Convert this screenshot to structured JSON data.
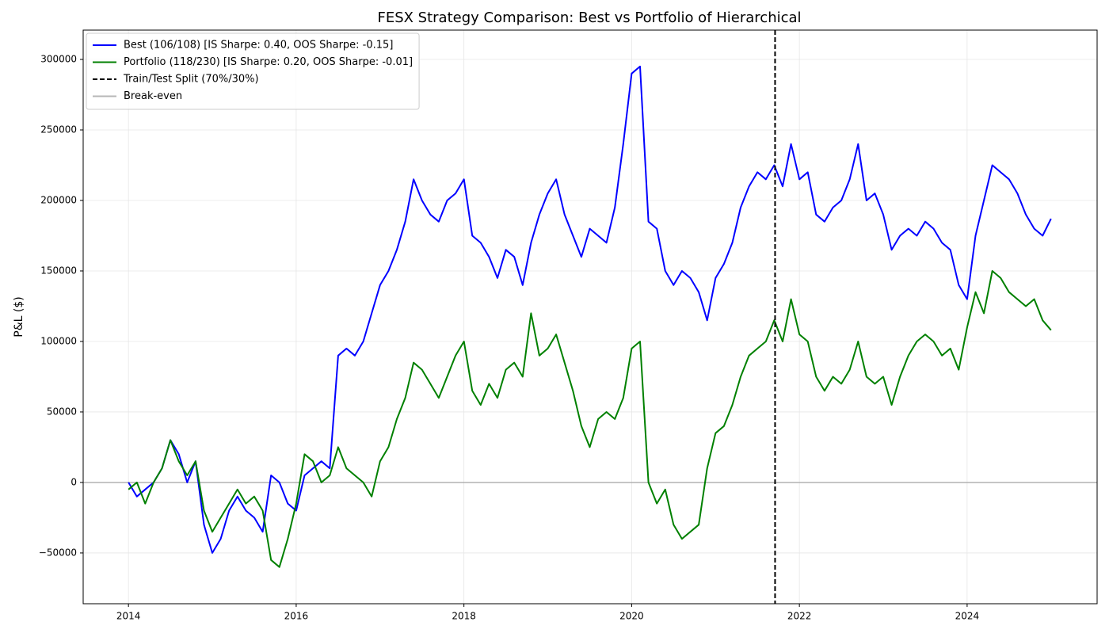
{
  "chart_data": {
    "type": "line",
    "title": "FESX Strategy Comparison: Best vs Portfolio of Hierarchical",
    "y_label": "P&L ($)",
    "x": [
      2014.0,
      2014.1,
      2014.2,
      2014.3,
      2014.4,
      2014.5,
      2014.6,
      2014.7,
      2014.8,
      2014.9,
      2015.0,
      2015.1,
      2015.2,
      2015.3,
      2015.4,
      2015.5,
      2015.6,
      2015.7,
      2015.8,
      2015.9,
      2016.0,
      2016.1,
      2016.2,
      2016.3,
      2016.4,
      2016.5,
      2016.6,
      2016.7,
      2016.8,
      2016.9,
      2017.0,
      2017.1,
      2017.2,
      2017.3,
      2017.4,
      2017.5,
      2017.6,
      2017.7,
      2017.8,
      2017.9,
      2018.0,
      2018.1,
      2018.2,
      2018.3,
      2018.4,
      2018.5,
      2018.6,
      2018.7,
      2018.8,
      2018.9,
      2019.0,
      2019.1,
      2019.2,
      2019.3,
      2019.4,
      2019.5,
      2019.6,
      2019.7,
      2019.8,
      2019.9,
      2020.0,
      2020.1,
      2020.2,
      2020.3,
      2020.4,
      2020.5,
      2020.6,
      2020.7,
      2020.8,
      2020.9,
      2021.0,
      2021.1,
      2021.2,
      2021.3,
      2021.4,
      2021.5,
      2021.6,
      2021.7,
      2021.8,
      2021.9,
      2022.0,
      2022.1,
      2022.2,
      2022.3,
      2022.4,
      2022.5,
      2022.6,
      2022.7,
      2022.8,
      2022.9,
      2023.0,
      2023.1,
      2023.2,
      2023.3,
      2023.4,
      2023.5,
      2023.6,
      2023.7,
      2023.8,
      2023.9,
      2024.0,
      2024.1,
      2024.2,
      2024.3,
      2024.4,
      2024.5,
      2024.6,
      2024.7,
      2024.8,
      2024.9,
      2025.0
    ],
    "series": [
      {
        "name": "Best (106/108) [IS Sharpe: 0.40, OOS Sharpe: -0.15]",
        "color": "#0000ff",
        "values": [
          0,
          -10000,
          -5000,
          0,
          10000,
          30000,
          20000,
          0,
          15000,
          -30000,
          -50000,
          -40000,
          -20000,
          -10000,
          -20000,
          -25000,
          -35000,
          5000,
          0,
          -15000,
          -20000,
          5000,
          10000,
          15000,
          10000,
          90000,
          95000,
          90000,
          100000,
          120000,
          140000,
          150000,
          165000,
          185000,
          215000,
          200000,
          190000,
          185000,
          200000,
          205000,
          215000,
          175000,
          170000,
          160000,
          145000,
          165000,
          160000,
          140000,
          170000,
          190000,
          205000,
          215000,
          190000,
          175000,
          160000,
          180000,
          175000,
          170000,
          195000,
          240000,
          290000,
          295000,
          185000,
          180000,
          150000,
          140000,
          150000,
          145000,
          135000,
          115000,
          145000,
          155000,
          170000,
          195000,
          210000,
          220000,
          215000,
          225000,
          210000,
          240000,
          215000,
          220000,
          190000,
          185000,
          195000,
          200000,
          215000,
          240000,
          200000,
          205000,
          190000,
          165000,
          175000,
          180000,
          175000,
          185000,
          180000,
          170000,
          165000,
          140000,
          130000,
          175000,
          200000,
          225000,
          220000,
          215000,
          205000,
          190000,
          180000,
          175000,
          187000
        ]
      },
      {
        "name": "Portfolio (118/230) [IS Sharpe: 0.20, OOS Sharpe: -0.01]",
        "color": "#008000",
        "values": [
          -5000,
          0,
          -15000,
          0,
          10000,
          30000,
          15000,
          5000,
          15000,
          -20000,
          -35000,
          -25000,
          -15000,
          -5000,
          -15000,
          -10000,
          -20000,
          -55000,
          -60000,
          -40000,
          -15000,
          20000,
          15000,
          0,
          5000,
          25000,
          10000,
          5000,
          0,
          -10000,
          15000,
          25000,
          45000,
          60000,
          85000,
          80000,
          70000,
          60000,
          75000,
          90000,
          100000,
          65000,
          55000,
          70000,
          60000,
          80000,
          85000,
          75000,
          120000,
          90000,
          95000,
          105000,
          85000,
          65000,
          40000,
          25000,
          45000,
          50000,
          45000,
          60000,
          95000,
          100000,
          0,
          -15000,
          -5000,
          -30000,
          -40000,
          -35000,
          -30000,
          10000,
          35000,
          40000,
          55000,
          75000,
          90000,
          95000,
          100000,
          115000,
          100000,
          130000,
          105000,
          100000,
          75000,
          65000,
          75000,
          70000,
          80000,
          100000,
          75000,
          70000,
          75000,
          55000,
          75000,
          90000,
          100000,
          105000,
          100000,
          90000,
          95000,
          80000,
          110000,
          135000,
          120000,
          150000,
          145000,
          135000,
          130000,
          125000,
          130000,
          115000,
          108000
        ]
      }
    ],
    "vlines": [
      {
        "name": "Train/Test Split (70%/30%)",
        "value": 2021.71,
        "color": "#000000",
        "style": "dashed"
      }
    ],
    "hlines": [
      {
        "name": "Break-even",
        "value": 0,
        "color": "#999999",
        "style": "solid"
      }
    ],
    "xlim": [
      2013.46,
      2025.55
    ],
    "xticks": [
      2014,
      2016,
      2018,
      2020,
      2022,
      2024
    ],
    "ylim": [
      -86000,
      320800
    ],
    "yticks": [
      {
        "value": -50000,
        "label": "−50000"
      },
      0,
      50000,
      100000,
      150000,
      200000,
      250000,
      300000
    ],
    "grid": true,
    "legend": "upper left"
  }
}
